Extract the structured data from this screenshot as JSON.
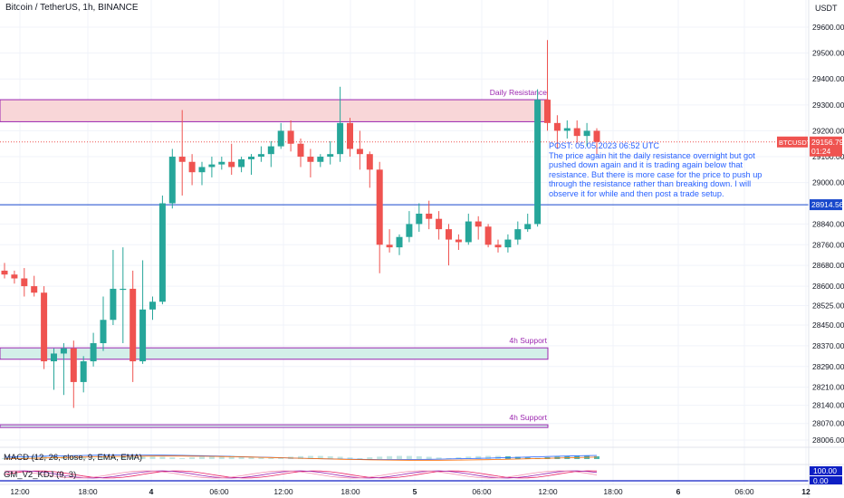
{
  "symbol_title": "Bitcoin / TetherUS, 1h, BINANCE",
  "currency": "USDT",
  "macd_label": "MACD (12, 26, close, 9, EMA, EMA)",
  "kdj_label": "GM_V2_KDJ (9, 3)",
  "note": {
    "title": "POST: 05.05.2023 06:52 UTC",
    "body": "The price again hit the daily resistance overnight but got pushed down again and it is trading again below that resistance. But there is more case for the price to push up through the resistance rather than breaking down. I will observe it for while and then post a trade setup."
  },
  "colors": {
    "up": "#26a69a",
    "down": "#ef5350",
    "resistance_fill": "#f8d6d8",
    "resistance_border": "#9c27b0",
    "support_fill": "#d3efe9",
    "support_border": "#9c27b0",
    "hline": "#1848cc",
    "label_purple": "#9c27b0",
    "grid": "#f0f3fa",
    "last_price_bg": "#ef5350",
    "hline_badge_bg": "#1848cc",
    "kdj_badge_bg": "#0d1fc4"
  },
  "chart_data": {
    "type": "candlestick",
    "title": "Bitcoin / TetherUS, 1h, BINANCE",
    "ylabel": "USDT",
    "ylim": [
      28006,
      29600
    ],
    "y_ticks": [
      "29600.00",
      "29500.00",
      "29400.00",
      "29300.00",
      "29200.00",
      "29100.00",
      "29000.00",
      "28840.00",
      "28760.00",
      "28680.00",
      "28600.00",
      "28525.00",
      "28450.00",
      "28370.00",
      "28290.00",
      "28210.00",
      "28140.00",
      "28070.00",
      "28006.00"
    ],
    "x_ticks": [
      "12:00",
      "18:00",
      "4",
      "06:00",
      "12:00",
      "18:00",
      "5",
      "06:00",
      "12:00",
      "18:00",
      "6",
      "06:00",
      "12"
    ],
    "candles": [
      {
        "o": 28660,
        "h": 28690,
        "l": 28630,
        "c": 28645
      },
      {
        "o": 28645,
        "h": 28660,
        "l": 28610,
        "c": 28630
      },
      {
        "o": 28630,
        "h": 28670,
        "l": 28560,
        "c": 28600
      },
      {
        "o": 28600,
        "h": 28640,
        "l": 28560,
        "c": 28575
      },
      {
        "o": 28575,
        "h": 28600,
        "l": 28280,
        "c": 28310
      },
      {
        "o": 28310,
        "h": 28360,
        "l": 28200,
        "c": 28340
      },
      {
        "o": 28340,
        "h": 28380,
        "l": 28180,
        "c": 28360
      },
      {
        "o": 28360,
        "h": 28390,
        "l": 28130,
        "c": 28230
      },
      {
        "o": 28230,
        "h": 28330,
        "l": 28190,
        "c": 28310
      },
      {
        "o": 28310,
        "h": 28420,
        "l": 28290,
        "c": 28380
      },
      {
        "o": 28380,
        "h": 28560,
        "l": 28350,
        "c": 28470
      },
      {
        "o": 28470,
        "h": 28740,
        "l": 28450,
        "c": 28590
      },
      {
        "o": 28590,
        "h": 28750,
        "l": 28380,
        "c": 28590
      },
      {
        "o": 28590,
        "h": 28660,
        "l": 28230,
        "c": 28310
      },
      {
        "o": 28310,
        "h": 28700,
        "l": 28300,
        "c": 28510
      },
      {
        "o": 28510,
        "h": 28560,
        "l": 28470,
        "c": 28540
      },
      {
        "o": 28540,
        "h": 28950,
        "l": 28530,
        "c": 28920
      },
      {
        "o": 28920,
        "h": 29130,
        "l": 28900,
        "c": 29100
      },
      {
        "o": 29100,
        "h": 29280,
        "l": 28950,
        "c": 29080
      },
      {
        "o": 29080,
        "h": 29110,
        "l": 28990,
        "c": 29040
      },
      {
        "o": 29040,
        "h": 29080,
        "l": 28990,
        "c": 29060
      },
      {
        "o": 29060,
        "h": 29100,
        "l": 29020,
        "c": 29070
      },
      {
        "o": 29070,
        "h": 29100,
        "l": 29050,
        "c": 29080
      },
      {
        "o": 29080,
        "h": 29150,
        "l": 29030,
        "c": 29060
      },
      {
        "o": 29060,
        "h": 29100,
        "l": 29040,
        "c": 29090
      },
      {
        "o": 29090,
        "h": 29110,
        "l": 29030,
        "c": 29100
      },
      {
        "o": 29100,
        "h": 29140,
        "l": 29080,
        "c": 29110
      },
      {
        "o": 29110,
        "h": 29160,
        "l": 29060,
        "c": 29140
      },
      {
        "o": 29140,
        "h": 29230,
        "l": 29130,
        "c": 29200
      },
      {
        "o": 29200,
        "h": 29240,
        "l": 29120,
        "c": 29150
      },
      {
        "o": 29150,
        "h": 29170,
        "l": 29060,
        "c": 29100
      },
      {
        "o": 29100,
        "h": 29130,
        "l": 29020,
        "c": 29080
      },
      {
        "o": 29080,
        "h": 29110,
        "l": 29060,
        "c": 29100
      },
      {
        "o": 29100,
        "h": 29160,
        "l": 29070,
        "c": 29110
      },
      {
        "o": 29110,
        "h": 29370,
        "l": 29080,
        "c": 29230
      },
      {
        "o": 29230,
        "h": 29250,
        "l": 29100,
        "c": 29130
      },
      {
        "o": 29130,
        "h": 29200,
        "l": 29050,
        "c": 29110
      },
      {
        "o": 29110,
        "h": 29120,
        "l": 28980,
        "c": 29050
      },
      {
        "o": 29050,
        "h": 29080,
        "l": 28650,
        "c": 28760
      },
      {
        "o": 28760,
        "h": 28820,
        "l": 28730,
        "c": 28750
      },
      {
        "o": 28750,
        "h": 28800,
        "l": 28720,
        "c": 28790
      },
      {
        "o": 28790,
        "h": 28890,
        "l": 28770,
        "c": 28840
      },
      {
        "o": 28840,
        "h": 28920,
        "l": 28810,
        "c": 28880
      },
      {
        "o": 28880,
        "h": 28930,
        "l": 28820,
        "c": 28860
      },
      {
        "o": 28860,
        "h": 28890,
        "l": 28780,
        "c": 28820
      },
      {
        "o": 28820,
        "h": 28840,
        "l": 28680,
        "c": 28780
      },
      {
        "o": 28780,
        "h": 28800,
        "l": 28740,
        "c": 28770
      },
      {
        "o": 28770,
        "h": 28880,
        "l": 28760,
        "c": 28850
      },
      {
        "o": 28850,
        "h": 28870,
        "l": 28780,
        "c": 28830
      },
      {
        "o": 28830,
        "h": 28840,
        "l": 28750,
        "c": 28760
      },
      {
        "o": 28760,
        "h": 28780,
        "l": 28730,
        "c": 28750
      },
      {
        "o": 28750,
        "h": 28800,
        "l": 28730,
        "c": 28780
      },
      {
        "o": 28780,
        "h": 28850,
        "l": 28760,
        "c": 28820
      },
      {
        "o": 28820,
        "h": 28880,
        "l": 28810,
        "c": 28840
      },
      {
        "o": 28840,
        "h": 29360,
        "l": 28830,
        "c": 29320
      },
      {
        "o": 29320,
        "h": 29550,
        "l": 29200,
        "c": 29230
      },
      {
        "o": 29230,
        "h": 29260,
        "l": 29130,
        "c": 29200
      },
      {
        "o": 29200,
        "h": 29240,
        "l": 29170,
        "c": 29210
      },
      {
        "o": 29210,
        "h": 29240,
        "l": 29150,
        "c": 29180
      },
      {
        "o": 29180,
        "h": 29230,
        "l": 29140,
        "c": 29200
      },
      {
        "o": 29200,
        "h": 29210,
        "l": 29110,
        "c": 29156.79
      }
    ],
    "zones": [
      {
        "label": "Daily Resistance",
        "kind": "resistance",
        "top": 29320,
        "bottom": 29235
      },
      {
        "label": "4h Support",
        "kind": "support",
        "top": 28362,
        "bottom": 28318
      },
      {
        "label": "4h Support",
        "kind": "support",
        "top": 28065,
        "bottom": 28055
      }
    ],
    "horizontal_line": {
      "value": 28914.56,
      "label": "28914.56"
    },
    "last_price": {
      "symbol": "BTCUSDT",
      "value": 29156.79,
      "label": "29156.79",
      "countdown": "01:24"
    },
    "kdj_badges": [
      "100.00",
      "0.00"
    ]
  }
}
